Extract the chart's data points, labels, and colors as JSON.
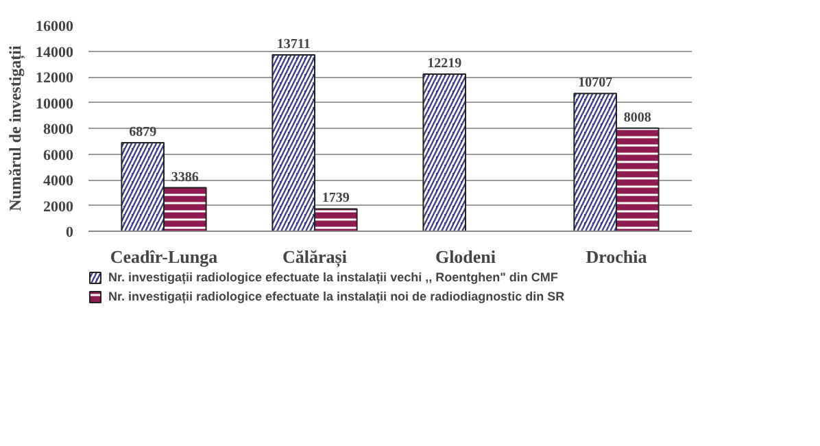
{
  "chart_data": {
    "type": "bar",
    "ylabel": "Numărul de investigații",
    "categories": [
      "Ceadîr-Lunga",
      "Călărași",
      "Glodeni",
      "Drochia"
    ],
    "series": [
      {
        "name": "Nr. investigații radiologice efectuate la instalații vechi ,, Roentghen\" din CMF",
        "color": "#3d3d8f",
        "values": [
          6879,
          13711,
          12219,
          10707
        ]
      },
      {
        "name": "Nr. investigații radiologice efectuate la instalații noi de radiodiagnostic din SR",
        "color": "#8e1b52",
        "values": [
          3386,
          1739,
          null,
          8008
        ]
      }
    ],
    "ylim": [
      0,
      16000
    ],
    "yticks": [
      0,
      2000,
      4000,
      6000,
      8000,
      10000,
      12000,
      14000,
      16000
    ],
    "grid": "y",
    "legend": "bottom",
    "data_labels": true
  }
}
